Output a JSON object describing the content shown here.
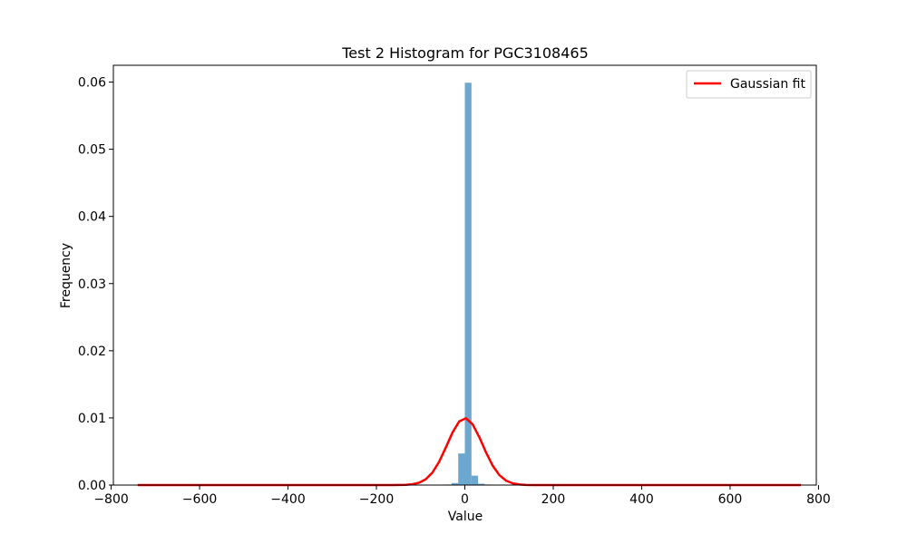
{
  "chart_data": {
    "type": "bar",
    "title": "Test 2 Histogram for PGC3108465",
    "xlabel": "Value",
    "ylabel": "Frequency",
    "xlim": [
      -795,
      795
    ],
    "ylim": [
      0,
      0.0625
    ],
    "xticks": [
      -800,
      -600,
      -400,
      -200,
      0,
      200,
      400,
      600,
      800
    ],
    "xtick_labels": [
      "−800",
      "−600",
      "−400",
      "−200",
      "0",
      "200",
      "400",
      "600",
      "800"
    ],
    "yticks": [
      0,
      0.01,
      0.02,
      0.03,
      0.04,
      0.05,
      0.06
    ],
    "ytick_labels": [
      "0.00",
      "0.01",
      "0.02",
      "0.03",
      "0.04",
      "0.05",
      "0.06"
    ],
    "histogram": {
      "color": "#5b9dc9",
      "opacity": 0.9,
      "bin_width": 15,
      "bins": [
        {
          "x0": -60,
          "x1": -45,
          "value": 5e-05
        },
        {
          "x0": -45,
          "x1": -30,
          "value": 8e-05
        },
        {
          "x0": -30,
          "x1": -15,
          "value": 0.0003
        },
        {
          "x0": -15,
          "x1": 0,
          "value": 0.0047
        },
        {
          "x0": 0,
          "x1": 15,
          "value": 0.0599
        },
        {
          "x0": 15,
          "x1": 30,
          "value": 0.0014
        },
        {
          "x0": 30,
          "x1": 45,
          "value": 0.0002
        },
        {
          "x0": 45,
          "x1": 60,
          "value": 8e-05
        },
        {
          "x0": 60,
          "x1": 75,
          "value": 5e-05
        }
      ]
    },
    "series": [
      {
        "name": "Gaussian fit",
        "type": "line",
        "color": "#ff0000",
        "mu": 0,
        "sigma": 40,
        "peak": 0.00997,
        "x_range": [
          -740,
          760
        ],
        "samples": 100
      }
    ],
    "grid": false,
    "legend_position": "top-right"
  }
}
